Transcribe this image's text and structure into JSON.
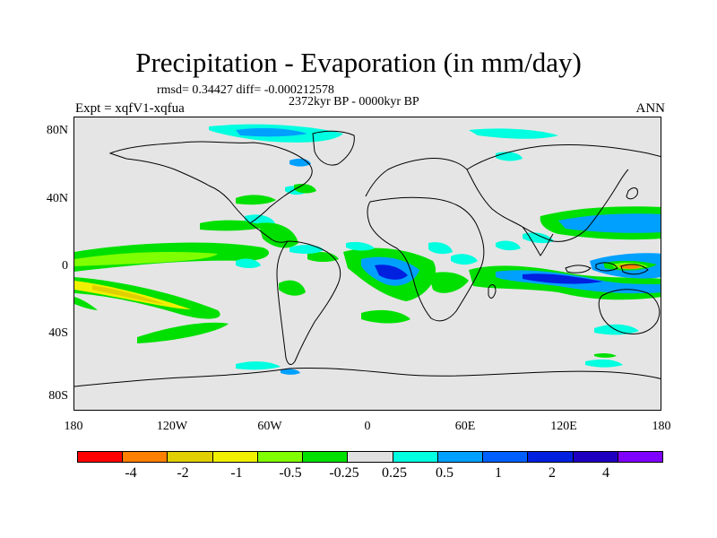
{
  "title": "Precipitation - Evaporation (in mm/day)",
  "stats": "rmsd= 0.34427 diff= -0.000212578",
  "period": "2372kyr BP - 0000kyr BP",
  "experiment": "Expt = xqfV1-xqfua",
  "season": "ANN",
  "lat_ticks": [
    "80N",
    "40N",
    "0",
    "40S",
    "80S"
  ],
  "lon_ticks": [
    "180",
    "120W",
    "60W",
    "0",
    "60E",
    "120E",
    "180"
  ],
  "colorbar": {
    "colors": [
      "#ff0000",
      "#ff8000",
      "#e0d000",
      "#f0f000",
      "#80ff00",
      "#00e000",
      "#e0e0e0",
      "#00ffe0",
      "#00a0ff",
      "#0060ff",
      "#0020e0",
      "#2000c0",
      "#8000ff"
    ],
    "labels": [
      "-4",
      "-2",
      "-1",
      "-0.5",
      "-0.25",
      "0.25",
      "0.5",
      "1",
      "2",
      "4"
    ]
  },
  "colors": {
    "land_background": "#e5e5e5",
    "coast": "#000000"
  }
}
